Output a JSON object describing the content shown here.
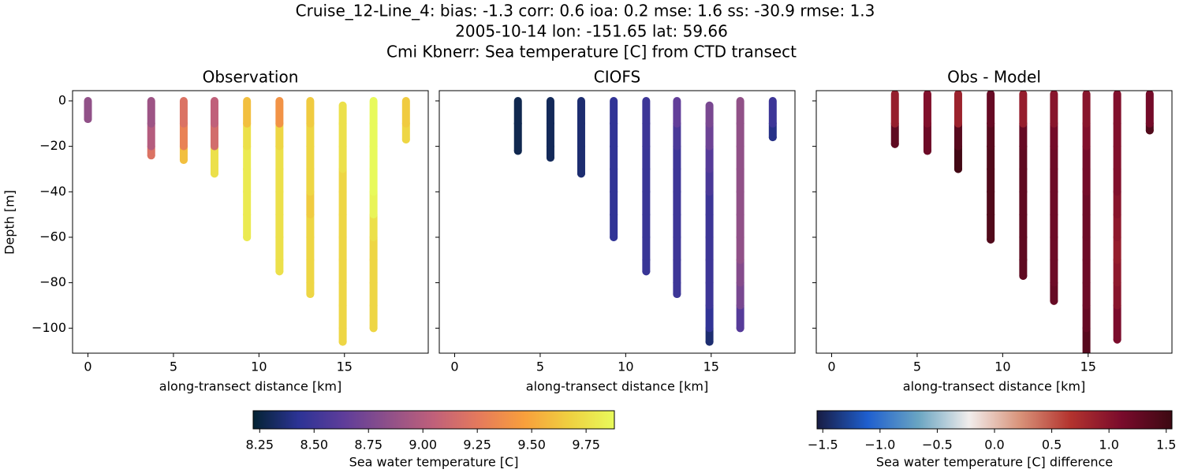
{
  "title": [
    "Cruise_12-Line_4: bias: -1.3  corr: 0.6  ioa: 0.2  mse: 1.6  ss: -30.9  rmse: 1.3",
    "2005-10-14 lon: -151.65 lat: 59.66",
    "Cmi Kbnerr: Sea temperature [C] from CTD transect"
  ],
  "colorbars": [
    {
      "label": "Sea water temperature [C]",
      "clim": [
        8.22,
        9.88
      ],
      "ticks": [
        8.25,
        {
          "value": 8.5,
          "label": "8.50"
        },
        8.75,
        {
          "value": 9.0,
          "label": "9.00"
        },
        9.25,
        {
          "value": 9.5,
          "label": "9.50"
        },
        9.75
      ],
      "colormap": [
        "#042333",
        "#2c3395",
        "#5e3d9a",
        "#8f5089",
        "#c0607a",
        "#e57a5c",
        "#f89f3c",
        "#efd040",
        "#e8fa5b"
      ]
    },
    {
      "label": "Sea water temperature [C] difference",
      "clim": [
        -1.55,
        1.55
      ],
      "ticks": [
        {
          "value": -1.5,
          "label": "−1.5"
        },
        {
          "value": -1.0,
          "label": "−1.0"
        },
        {
          "value": -0.5,
          "label": "−0.5"
        },
        {
          "value": 0,
          "label": "0.0"
        },
        0.5,
        {
          "value": 1.0,
          "label": "1.0"
        },
        1.5
      ],
      "colormap": [
        "#181c43",
        "#1f5fcf",
        "#6aa5c2",
        "#f1edec",
        "#d9937a",
        "#b3332e",
        "#7a0b2c",
        "#3c0912"
      ]
    }
  ],
  "chart_data": [
    {
      "type": "scatter",
      "title": "Observation",
      "xlabel": "along-transect distance [km]",
      "ylabel": "Depth [m]",
      "colorbar": 0,
      "xlim": [
        -0.9,
        19.9
      ],
      "xticks": [
        0,
        5,
        10,
        15
      ],
      "ylim": [
        -111,
        4.5
      ],
      "ytick_labels": true,
      "yticks": [
        0,
        {
          "value": -20,
          "label": "−20"
        },
        {
          "value": -40,
          "label": "−40"
        },
        {
          "value": -60,
          "label": "−60"
        },
        {
          "value": -80,
          "label": "−80"
        },
        {
          "value": -100,
          "label": "−100"
        }
      ],
      "casts": [
        {
          "x": 0,
          "y": [
            0,
            -8
          ],
          "values": [
            8.85,
            8.85
          ]
        },
        {
          "x": 3.7,
          "y": [
            0,
            -10,
            -20,
            -24
          ],
          "values": [
            8.9,
            9.0,
            9.2,
            9.4
          ]
        },
        {
          "x": 5.6,
          "y": [
            0,
            -10,
            -20,
            -26
          ],
          "values": [
            9.2,
            9.3,
            9.6,
            9.65
          ]
        },
        {
          "x": 7.4,
          "y": [
            0,
            -10,
            -20,
            -32
          ],
          "values": [
            9.05,
            9.15,
            9.75,
            9.8
          ]
        },
        {
          "x": 9.3,
          "y": [
            0,
            -10,
            -20,
            -30,
            -40,
            -50,
            -60
          ],
          "values": [
            9.6,
            9.75,
            9.8,
            9.8,
            9.8,
            9.8,
            9.8
          ]
        },
        {
          "x": 11.2,
          "y": [
            0,
            -10,
            -20,
            -30,
            -40,
            -50,
            -60,
            -70,
            -75
          ],
          "values": [
            9.4,
            9.7,
            9.75,
            9.75,
            9.75,
            9.75,
            9.75,
            9.75,
            9.75
          ]
        },
        {
          "x": 13.0,
          "y": [
            0,
            -10,
            -20,
            -30,
            -40,
            -50,
            -60,
            -70,
            -80,
            -85
          ],
          "values": [
            9.65,
            9.7,
            9.7,
            9.7,
            9.65,
            9.7,
            9.7,
            9.7,
            9.7,
            9.7
          ]
        },
        {
          "x": 14.9,
          "y": [
            -2,
            -10,
            -20,
            -30,
            -40,
            -50,
            -60,
            -70,
            -80,
            -90,
            -100,
            -106
          ],
          "values": [
            9.75,
            9.75,
            9.75,
            9.7,
            9.7,
            9.7,
            9.7,
            9.7,
            9.7,
            9.7,
            9.7,
            9.7
          ]
        },
        {
          "x": 16.7,
          "y": [
            0,
            -10,
            -20,
            -30,
            -40,
            -50,
            -60,
            -70,
            -80,
            -90,
            -100
          ],
          "values": [
            9.88,
            9.88,
            9.88,
            9.88,
            9.85,
            9.75,
            9.7,
            9.7,
            9.7,
            9.7,
            9.7
          ]
        },
        {
          "x": 18.6,
          "y": [
            0,
            -10,
            -17
          ],
          "values": [
            9.65,
            9.7,
            9.75
          ]
        }
      ]
    },
    {
      "type": "scatter",
      "title": "CIOFS",
      "xlabel": "along-transect distance [km]",
      "colorbar": 0,
      "xlim": [
        -0.9,
        19.9
      ],
      "xticks": [
        0,
        5,
        10,
        15
      ],
      "ylim": [
        -111,
        4.5
      ],
      "ytick_labels": false,
      "yticks": [
        0,
        -20,
        -40,
        -60,
        -80,
        -100
      ],
      "casts": [
        {
          "x": 3.7,
          "y": [
            0,
            -10,
            -22
          ],
          "values": [
            8.28,
            8.28,
            8.28
          ]
        },
        {
          "x": 5.6,
          "y": [
            0,
            -10,
            -20,
            -25
          ],
          "values": [
            8.3,
            8.3,
            8.3,
            8.3
          ]
        },
        {
          "x": 7.4,
          "y": [
            0,
            -10,
            -20,
            -32
          ],
          "values": [
            8.35,
            8.35,
            8.35,
            8.33
          ]
        },
        {
          "x": 9.3,
          "y": [
            0,
            -10,
            -20,
            -30,
            -40,
            -50,
            -60
          ],
          "values": [
            8.45,
            8.45,
            8.45,
            8.45,
            8.45,
            8.45,
            8.45
          ]
        },
        {
          "x": 11.2,
          "y": [
            0,
            -10,
            -20,
            -30,
            -40,
            -50,
            -60,
            -70,
            -75
          ],
          "values": [
            8.5,
            8.5,
            8.48,
            8.48,
            8.48,
            8.48,
            8.48,
            8.48,
            8.48
          ]
        },
        {
          "x": 13.0,
          "y": [
            0,
            -10,
            -20,
            -30,
            -40,
            -50,
            -60,
            -70,
            -80,
            -85
          ],
          "values": [
            8.65,
            8.55,
            8.5,
            8.5,
            8.5,
            8.5,
            8.5,
            8.5,
            8.5,
            8.45
          ]
        },
        {
          "x": 14.9,
          "y": [
            -2,
            -10,
            -20,
            -30,
            -40,
            -50,
            -60,
            -70,
            -80,
            -90,
            -100,
            -106
          ],
          "values": [
            8.75,
            8.7,
            8.6,
            8.55,
            8.5,
            8.5,
            8.5,
            8.5,
            8.5,
            8.45,
            8.35,
            8.3
          ]
        },
        {
          "x": 16.7,
          "y": [
            0,
            -10,
            -20,
            -30,
            -40,
            -50,
            -60,
            -70,
            -80,
            -90,
            -100
          ],
          "values": [
            8.85,
            8.85,
            8.85,
            8.85,
            8.85,
            8.85,
            8.85,
            8.8,
            8.75,
            8.6,
            8.55
          ]
        },
        {
          "x": 18.6,
          "y": [
            0,
            -10,
            -16
          ],
          "values": [
            8.5,
            8.4,
            8.3
          ]
        }
      ]
    },
    {
      "type": "scatter",
      "title": "Obs - Model",
      "xlabel": "along-transect distance [km]",
      "colorbar": 1,
      "xlim": [
        -0.9,
        19.9
      ],
      "xticks": [
        0,
        5,
        10,
        15
      ],
      "ylim": [
        -111,
        4.5
      ],
      "ytick_labels": false,
      "yticks": [
        0,
        -20,
        -40,
        -60,
        -80,
        -100
      ],
      "casts": [
        {
          "x": 3.7,
          "y": [
            3,
            -10,
            -19
          ],
          "values": [
            0.9,
            1.3,
            1.5
          ]
        },
        {
          "x": 5.6,
          "y": [
            3,
            -10,
            -22
          ],
          "values": [
            1.05,
            1.2,
            1.5
          ]
        },
        {
          "x": 7.4,
          "y": [
            3,
            -10,
            -20,
            -30
          ],
          "values": [
            0.85,
            1.35,
            1.5,
            1.5
          ]
        },
        {
          "x": 9.3,
          "y": [
            3,
            -10,
            -20,
            -30,
            -40,
            -50,
            -61
          ],
          "values": [
            1.25,
            1.35,
            1.4,
            1.4,
            1.4,
            1.4,
            1.4
          ]
        },
        {
          "x": 11.2,
          "y": [
            3,
            -10,
            -20,
            -30,
            -40,
            -50,
            -60,
            -70,
            -77
          ],
          "values": [
            0.9,
            1.25,
            1.3,
            1.3,
            1.3,
            1.3,
            1.3,
            1.3,
            1.3
          ]
        },
        {
          "x": 13.0,
          "y": [
            3,
            -10,
            -20,
            -30,
            -40,
            -50,
            -60,
            -70,
            -80,
            -88
          ],
          "values": [
            1.0,
            1.15,
            1.2,
            1.2,
            1.2,
            1.2,
            1.2,
            1.2,
            1.25,
            1.3
          ]
        },
        {
          "x": 14.9,
          "y": [
            3,
            -10,
            -20,
            -30,
            -40,
            -50,
            -60,
            -70,
            -80,
            -90,
            -100,
            -112
          ],
          "values": [
            1.0,
            1.05,
            1.15,
            1.15,
            1.2,
            1.2,
            1.2,
            1.2,
            1.2,
            1.25,
            1.35,
            1.4
          ]
        },
        {
          "x": 16.7,
          "y": [
            3,
            -10,
            -20,
            -30,
            -40,
            -50,
            -60,
            -70,
            -80,
            -90,
            -105
          ],
          "values": [
            1.05,
            1.05,
            1.05,
            1.05,
            1.0,
            0.95,
            0.9,
            0.95,
            1.0,
            1.1,
            1.15
          ]
        },
        {
          "x": 18.6,
          "y": [
            3,
            -10,
            -13
          ],
          "values": [
            1.15,
            1.4,
            1.5
          ]
        }
      ]
    }
  ]
}
